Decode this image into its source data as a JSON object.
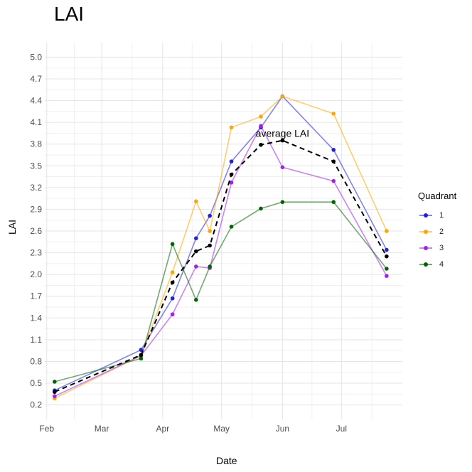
{
  "chart_data": {
    "type": "line",
    "title": "LAI",
    "xlabel": "Date",
    "ylabel": "LAI",
    "x_ticks": [
      "Feb",
      "Mar",
      "Apr",
      "May",
      "Jun",
      "Jul"
    ],
    "y_ticks": [
      "0.2",
      "0.5",
      "0.8",
      "1.1",
      "1.4",
      "1.7",
      "2.0",
      "2.3",
      "2.6",
      "2.9",
      "3.2",
      "3.5",
      "3.8",
      "4.1",
      "4.4",
      "4.7",
      "5.0"
    ],
    "ylim": [
      0.2,
      5.0
    ],
    "x_dates": [
      "2023-02-05",
      "2023-04-07",
      "2023-04-13",
      "2023-04-20",
      "2023-05-24",
      "2023-06-24",
      "2023-07-24"
    ],
    "legend_title": "Quadrant",
    "legend_position": "right",
    "grid": true,
    "series": [
      {
        "name": "1",
        "color": "#1f1fe6",
        "points": [
          [
            "2023-02-05",
            0.4
          ],
          [
            "2023-03-21",
            0.96
          ],
          [
            "2023-04-06",
            1.67
          ],
          [
            "2023-04-18",
            2.5
          ],
          [
            "2023-04-25",
            2.81
          ],
          [
            "2023-05-06",
            3.56
          ],
          [
            "2023-05-21",
            4.03
          ],
          [
            "2023-06-01",
            4.46
          ],
          [
            "2023-06-27",
            3.72
          ],
          [
            "2023-07-24",
            2.34
          ]
        ]
      },
      {
        "name": "2",
        "color": "#ffa500",
        "points": [
          [
            "2023-02-05",
            0.29
          ],
          [
            "2023-03-21",
            0.88
          ],
          [
            "2023-04-06",
            2.03
          ],
          [
            "2023-04-18",
            3.01
          ],
          [
            "2023-04-25",
            2.6
          ],
          [
            "2023-05-06",
            4.03
          ],
          [
            "2023-05-21",
            4.18
          ],
          [
            "2023-06-01",
            4.46
          ],
          [
            "2023-06-27",
            4.22
          ],
          [
            "2023-07-24",
            2.6
          ]
        ]
      },
      {
        "name": "3",
        "color": "#a020f0",
        "points": [
          [
            "2023-02-05",
            0.32
          ],
          [
            "2023-03-21",
            0.88
          ],
          [
            "2023-04-06",
            1.45
          ],
          [
            "2023-04-18",
            2.11
          ],
          [
            "2023-04-25",
            2.09
          ],
          [
            "2023-05-06",
            3.27
          ],
          [
            "2023-05-21",
            4.05
          ],
          [
            "2023-06-01",
            3.48
          ],
          [
            "2023-06-27",
            3.29
          ],
          [
            "2023-07-24",
            1.98
          ]
        ]
      },
      {
        "name": "4",
        "color": "#006400",
        "points": [
          [
            "2023-02-05",
            0.52
          ],
          [
            "2023-03-21",
            0.84
          ],
          [
            "2023-04-06",
            2.42
          ],
          [
            "2023-04-18",
            1.65
          ],
          [
            "2023-04-25",
            2.11
          ],
          [
            "2023-05-06",
            2.66
          ],
          [
            "2023-05-21",
            2.91
          ],
          [
            "2023-06-01",
            3.0
          ],
          [
            "2023-06-27",
            3.0
          ],
          [
            "2023-07-24",
            2.08
          ]
        ]
      }
    ],
    "average": {
      "color": "#000000",
      "points": [
        [
          "2023-02-05",
          0.38
        ],
        [
          "2023-03-21",
          0.89
        ],
        [
          "2023-04-06",
          1.89
        ],
        [
          "2023-04-18",
          2.32
        ],
        [
          "2023-04-25",
          2.4
        ],
        [
          "2023-05-06",
          3.38
        ],
        [
          "2023-05-21",
          3.79
        ],
        [
          "2023-06-01",
          3.85
        ],
        [
          "2023-06-27",
          3.56
        ],
        [
          "2023-07-24",
          2.25
        ]
      ]
    },
    "annotation": {
      "text": "average LAI",
      "x": "2023-06-01",
      "y": 3.94
    }
  }
}
